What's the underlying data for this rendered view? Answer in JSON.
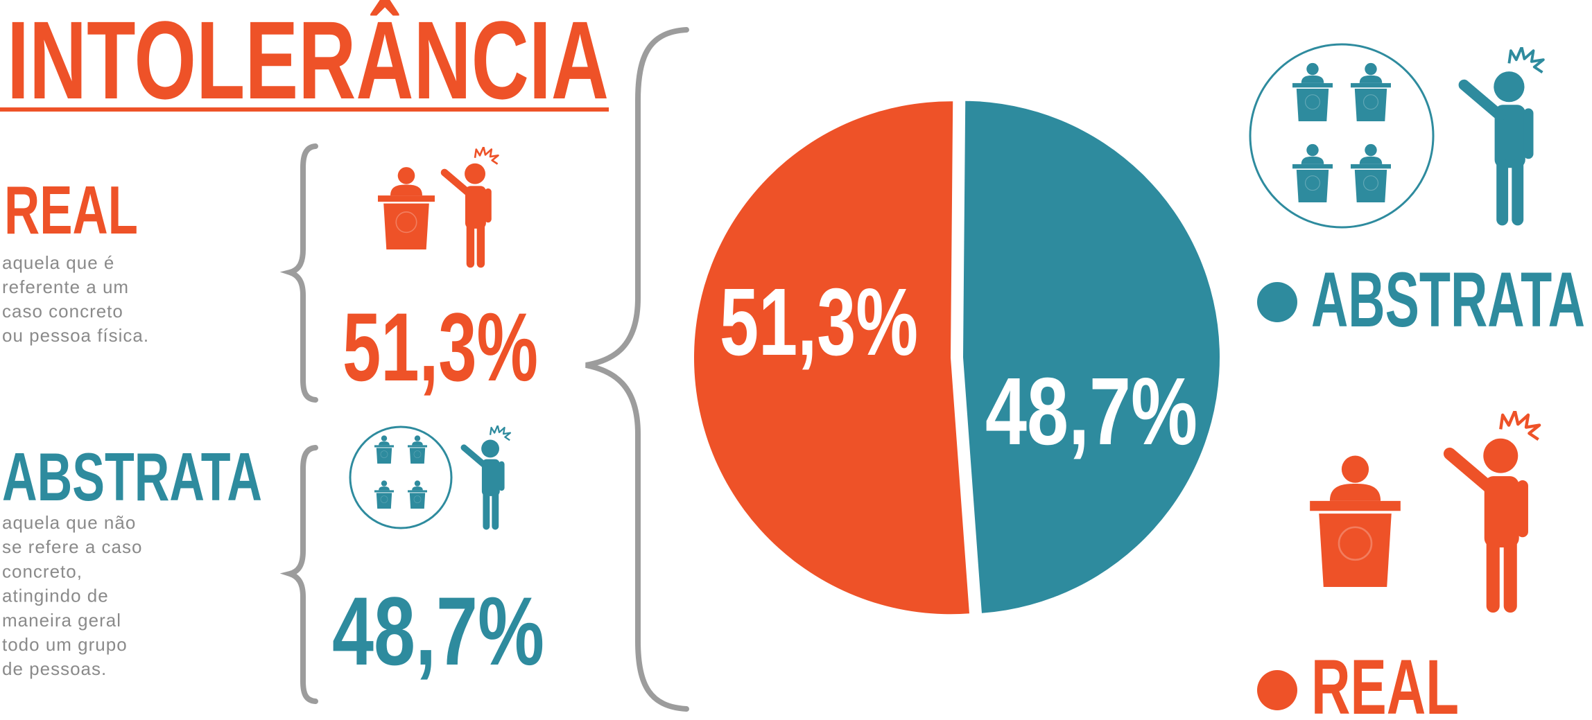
{
  "chart_data": {
    "type": "pie",
    "title": "INTOLERÂNCIA",
    "categories": [
      "REAL",
      "ABSTRATA"
    ],
    "values": [
      51.3,
      48.7
    ],
    "value_labels": [
      "51,3%",
      "48,7%"
    ],
    "colors": [
      "#ee5228",
      "#2e8b9e"
    ]
  },
  "definitions": [
    [
      "aquela que é",
      "referente a um",
      "caso concreto",
      "ou pessoa física."
    ],
    [
      "aquela que não",
      "se refere a caso",
      "concreto,",
      "atingindo de",
      "maneira geral",
      "todo um grupo",
      "de pessoas."
    ]
  ]
}
